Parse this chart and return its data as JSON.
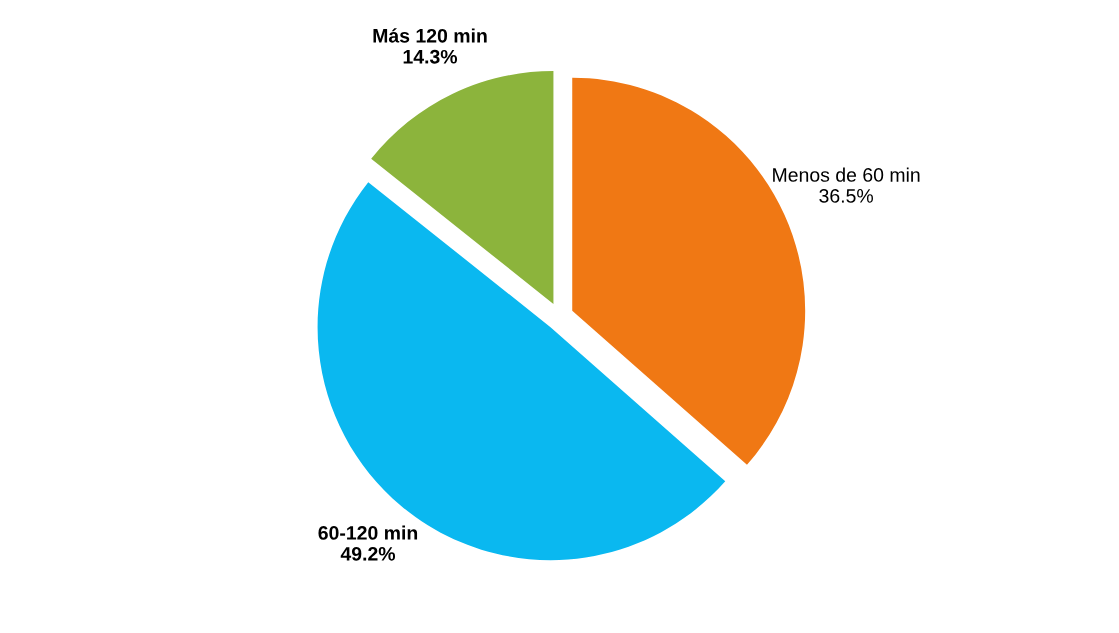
{
  "chart_data": {
    "type": "pie",
    "categories": [
      "Menos de 60 min",
      "60-120 min",
      "Más 120 min"
    ],
    "values": [
      36.5,
      49.2,
      14.3
    ],
    "value_labels": [
      "36.5%",
      "49.2%",
      "14.3%"
    ],
    "colors": [
      "#f07814",
      "#0ab8f0",
      "#8cb43c"
    ]
  }
}
